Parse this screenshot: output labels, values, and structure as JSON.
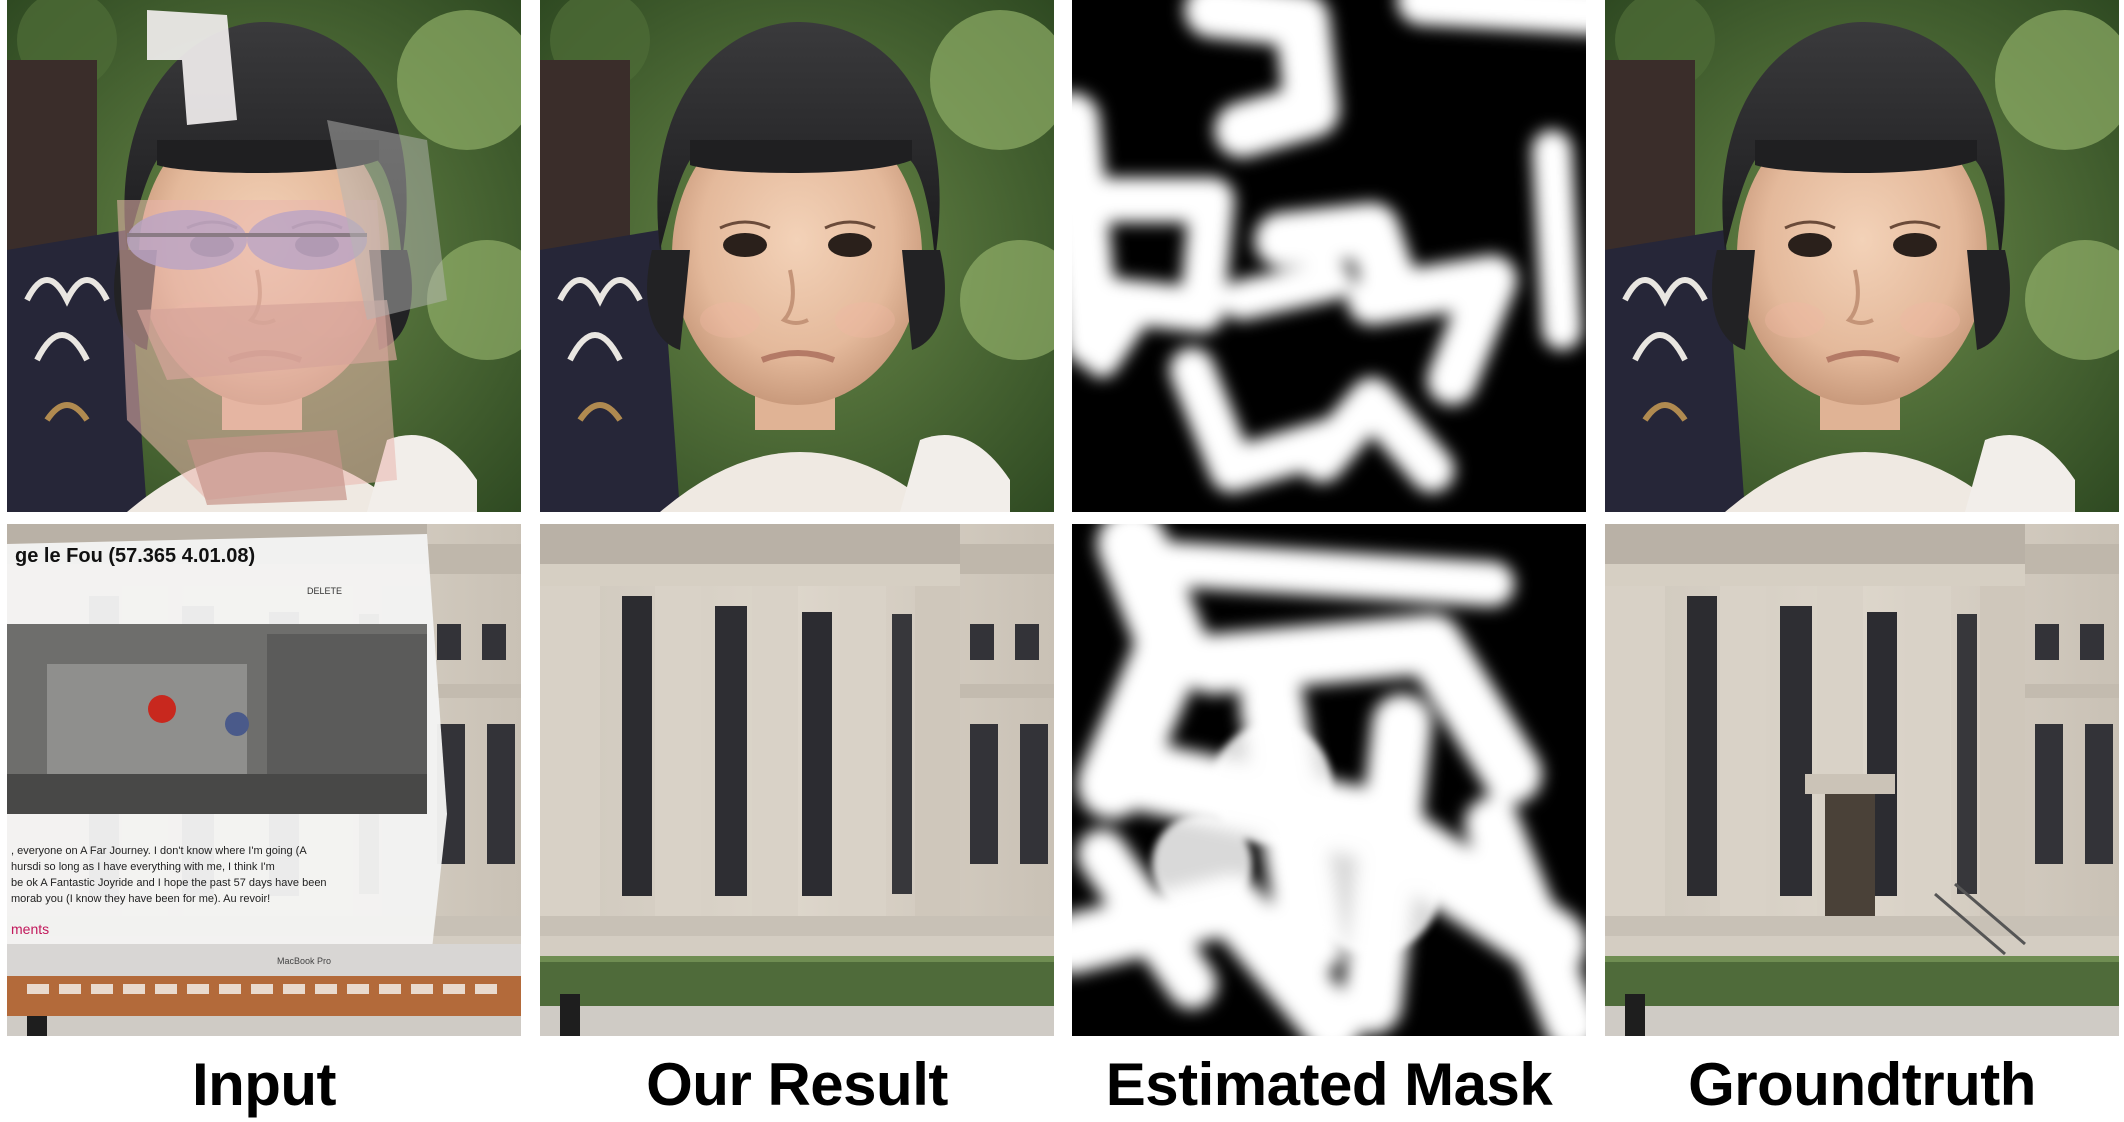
{
  "figure": {
    "columns": [
      {
        "label": "Input"
      },
      {
        "label": "Our Result"
      },
      {
        "label": "Estimated Mask"
      },
      {
        "label": "Groundtruth"
      }
    ],
    "rows": [
      {
        "subject": "child-portrait"
      },
      {
        "subject": "building-facade"
      }
    ]
  },
  "overlay_text": {
    "title": "ge le Fou (57.365 4.01.08)",
    "body_line1": ", everyone            on A Far Journey. I don't know where I'm going (A",
    "body_line2": "hursdi              so long as I have everything with me, I think I'm",
    "body_line3": "be ok            A Fantastic Joyride and I hope the past 57 days have been",
    "body_line4": "morab          you (I know they have been for me). Au revoir!",
    "comments": "ments",
    "laptop": "MacBook Pro",
    "btn_delete": "DELETE"
  }
}
